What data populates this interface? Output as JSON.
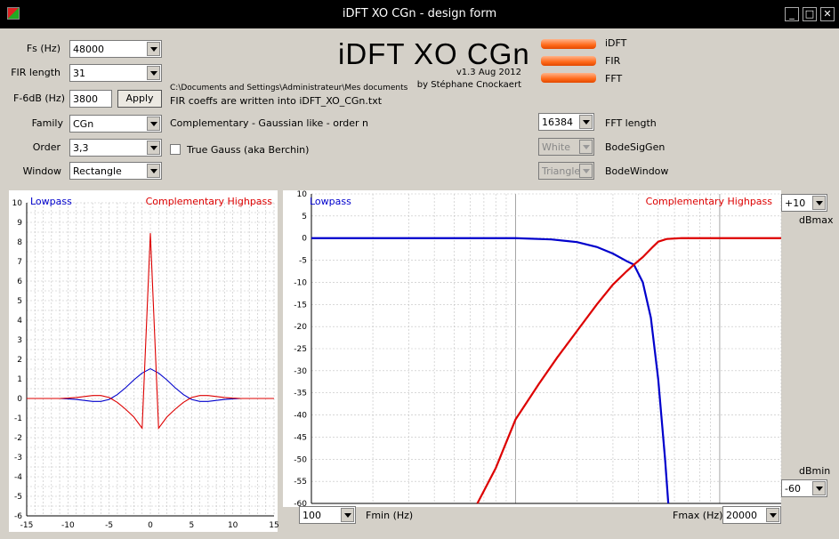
{
  "window": {
    "title": "iDFT XO CGn - design form"
  },
  "header": {
    "app_title": "iDFT XO CGn",
    "version": "v1.3 Aug 2012",
    "author": "by Stéphane Cnockaert"
  },
  "params": {
    "fs": {
      "label": "Fs (Hz)",
      "value": "48000"
    },
    "fir_length": {
      "label": "FIR length",
      "value": "31"
    },
    "f6db": {
      "label": "F-6dB (Hz)",
      "value": "3800",
      "apply_label": "Apply"
    },
    "family": {
      "label": "Family",
      "value": "CGn",
      "description": "Complementary - Gaussian like - order n"
    },
    "order": {
      "label": "Order",
      "value": "3,3"
    },
    "window": {
      "label": "Window",
      "value": "Rectangle"
    },
    "true_gauss": {
      "label": "True Gauss (aka Berchin)",
      "checked": false
    }
  },
  "output_info": {
    "path": "C:\\Documents and Settings\\Administrateur\\Mes documents",
    "message": "FIR coeffs are written into iDFT_XO_CGn.txt"
  },
  "progress": {
    "idft": {
      "label": "iDFT",
      "fill": 1.0
    },
    "fir": {
      "label": "FIR",
      "fill": 1.0
    },
    "fft": {
      "label": "FFT",
      "fill": 1.0
    }
  },
  "fft_settings": {
    "fft_length": {
      "label": "FFT length",
      "value": "16384"
    },
    "bode_sig_gen": {
      "label": "BodeSigGen",
      "value": "White"
    },
    "bode_window": {
      "label": "BodeWindow",
      "value": "Triangle"
    }
  },
  "bode_controls": {
    "dbmax": {
      "label": "dBmax",
      "value": "+10"
    },
    "dbmin": {
      "label": "dBmin",
      "value": "-60"
    },
    "fmin": {
      "label": "Fmin (Hz)",
      "value": "100"
    },
    "fmax": {
      "label": "Fmax (Hz)",
      "value": "20000"
    }
  },
  "colors": {
    "lowpass": "#0000cc",
    "highpass": "#dd0000",
    "grid": "#c0c0c0",
    "progress": "#ff6a1a"
  },
  "chart_data": [
    {
      "type": "line",
      "title": "",
      "xlim": [
        -15,
        15
      ],
      "ylim": [
        -6,
        10
      ],
      "x_ticks": [
        "-15",
        "-10",
        "-5",
        "0",
        "5",
        "10",
        "15"
      ],
      "y_ticks": [
        "-6",
        "-5",
        "-4",
        "-3",
        "-2",
        "-1",
        "0",
        "1",
        "2",
        "3",
        "4",
        "5",
        "6",
        "7",
        "8",
        "9",
        "10"
      ],
      "legend": [
        "Lowpass",
        "Complementary Highpass"
      ],
      "series": [
        {
          "name": "Lowpass",
          "x": [
            -15,
            -14,
            -13,
            -12,
            -11,
            -10,
            -9,
            -8,
            -7,
            -6,
            -5,
            -4,
            -3,
            -2,
            -1,
            0,
            1,
            2,
            3,
            4,
            5,
            6,
            7,
            8,
            9,
            10,
            11,
            12,
            13,
            14,
            15
          ],
          "y": [
            0,
            0,
            0,
            0,
            0,
            -0.02,
            -0.05,
            -0.1,
            -0.15,
            -0.15,
            -0.05,
            0.2,
            0.55,
            0.95,
            1.3,
            1.52,
            1.3,
            0.95,
            0.55,
            0.2,
            -0.05,
            -0.15,
            -0.15,
            -0.1,
            -0.05,
            -0.02,
            0,
            0,
            0,
            0,
            0
          ]
        },
        {
          "name": "Complementary Highpass",
          "x": [
            -15,
            -14,
            -13,
            -12,
            -11,
            -10,
            -9,
            -8,
            -7,
            -6,
            -5,
            -4,
            -3,
            -2,
            -1,
            0,
            1,
            2,
            3,
            4,
            5,
            6,
            7,
            8,
            9,
            10,
            11,
            12,
            13,
            14,
            15
          ],
          "y": [
            0,
            0,
            0,
            0,
            0,
            0.02,
            0.05,
            0.1,
            0.15,
            0.15,
            0.05,
            -0.2,
            -0.55,
            -0.95,
            -1.52,
            8.45,
            -1.52,
            -0.95,
            -0.55,
            -0.2,
            0.05,
            0.15,
            0.15,
            0.1,
            0.05,
            0.02,
            0,
            0,
            0,
            0,
            0
          ]
        }
      ]
    },
    {
      "type": "line",
      "title": "",
      "x_scale": "log",
      "xlim": [
        100,
        20000
      ],
      "ylim": [
        -60,
        10
      ],
      "y_ticks": [
        "10",
        "5",
        "0",
        "-5",
        "-10",
        "-15",
        "-20",
        "-25",
        "-30",
        "-35",
        "-40",
        "-45",
        "-50",
        "-55",
        "-60"
      ],
      "legend": [
        "Lowpass",
        "Complementary Highpass"
      ],
      "series": [
        {
          "name": "Lowpass",
          "x": [
            100,
            300,
            500,
            1000,
            1500,
            2000,
            2500,
            3000,
            3500,
            3800,
            4200,
            4600,
            5000,
            5400,
            5600
          ],
          "y": [
            0,
            0,
            0,
            0,
            -0.3,
            -0.9,
            -2.0,
            -3.5,
            -5.2,
            -6.0,
            -10,
            -18,
            -32,
            -50,
            -60
          ]
        },
        {
          "name": "Complementary Highpass",
          "x": [
            650,
            800,
            1000,
            1300,
            1600,
            2000,
            2500,
            3000,
            3500,
            3800,
            4200,
            4700,
            5000,
            5500,
            6500,
            10000,
            20000
          ],
          "y": [
            -60,
            -52,
            -41,
            -33,
            -27,
            -21,
            -15,
            -10.5,
            -7.5,
            -6.0,
            -4.3,
            -2.0,
            -0.8,
            -0.2,
            0,
            0,
            0
          ]
        }
      ]
    }
  ]
}
